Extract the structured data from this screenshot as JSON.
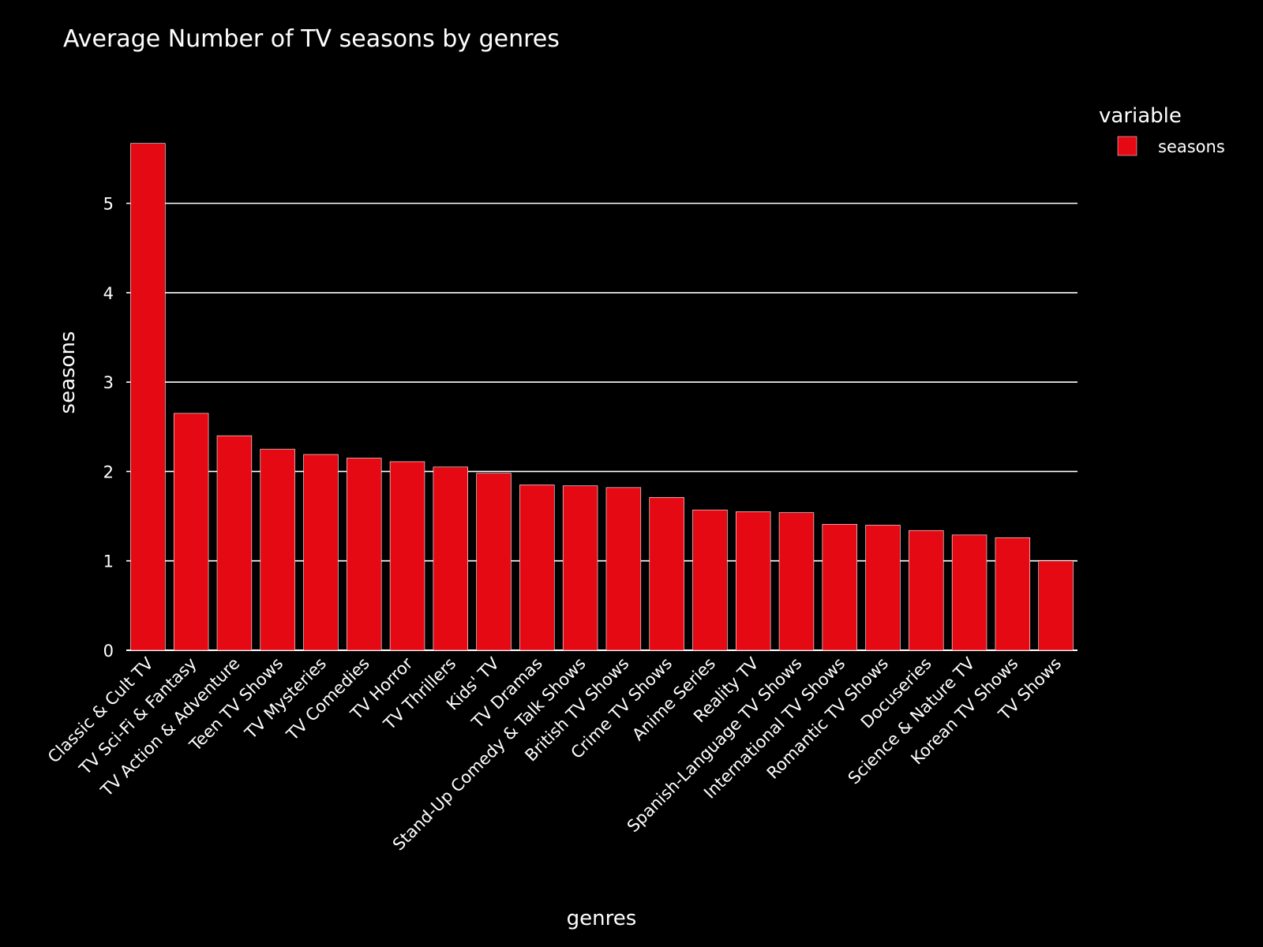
{
  "chart_data": {
    "type": "bar",
    "title": "Average Number of TV seasons by genres",
    "xlabel": "genres",
    "ylabel": "seasons",
    "ylim": [
      0,
      5.95
    ],
    "yticks": [
      0,
      1,
      2,
      3,
      4,
      5
    ],
    "grid": true,
    "legend": {
      "title": "variable",
      "position": "top-right"
    },
    "categories": [
      "Classic & Cult TV",
      "TV Sci-Fi & Fantasy",
      "TV Action & Adventure",
      "Teen TV Shows",
      "TV Mysteries",
      "TV Comedies",
      "TV Horror",
      "TV Thrillers",
      "Kids' TV",
      "TV Dramas",
      "Stand-Up Comedy & Talk Shows",
      "British TV Shows",
      "Crime TV Shows",
      "Anime Series",
      "Reality TV",
      "Spanish-Language TV Shows",
      "International TV Shows",
      "Romantic TV Shows",
      "Docuseries",
      "Science & Nature TV",
      "Korean TV Shows",
      "TV Shows"
    ],
    "series": [
      {
        "name": "seasons",
        "color": "#e50914",
        "values": [
          5.67,
          2.65,
          2.4,
          2.25,
          2.19,
          2.15,
          2.11,
          2.05,
          1.98,
          1.85,
          1.84,
          1.82,
          1.71,
          1.57,
          1.55,
          1.54,
          1.41,
          1.4,
          1.34,
          1.29,
          1.26,
          1.0
        ]
      }
    ]
  },
  "colors": {
    "background": "#000000",
    "bar": "#e50914",
    "grid": "#ffffff",
    "text": "#ffffff"
  }
}
